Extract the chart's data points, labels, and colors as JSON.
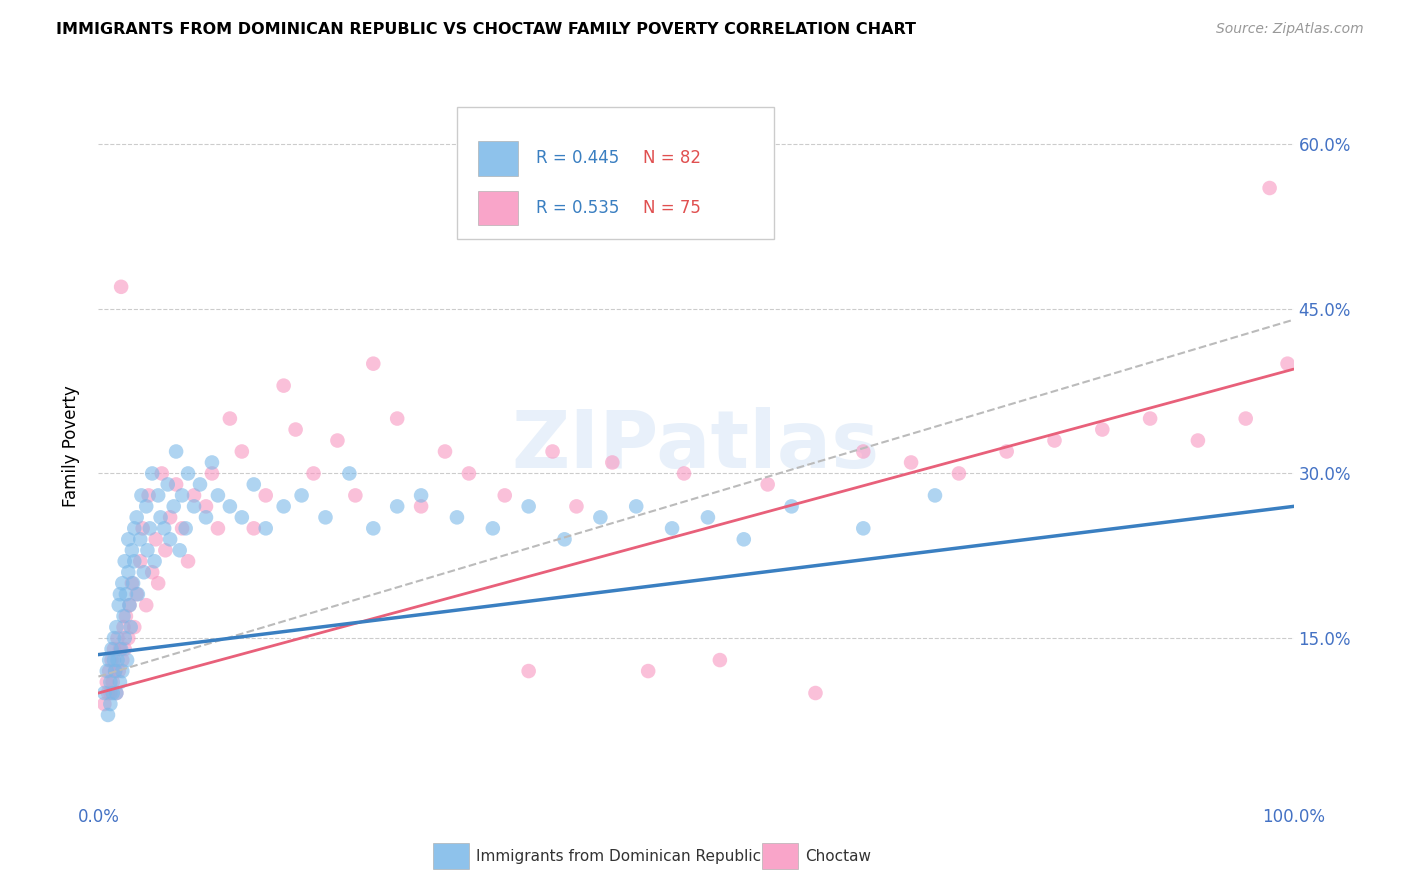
{
  "title": "IMMIGRANTS FROM DOMINICAN REPUBLIC VS CHOCTAW FAMILY POVERTY CORRELATION CHART",
  "source": "Source: ZipAtlas.com",
  "ylabel": "Family Poverty",
  "xlim": [
    0.0,
    1.0
  ],
  "ylim": [
    0.0,
    0.65
  ],
  "ytick_positions": [
    0.15,
    0.3,
    0.45,
    0.6
  ],
  "ytick_labels": [
    "15.0%",
    "30.0%",
    "45.0%",
    "60.0%"
  ],
  "blue_color": "#7ab8e8",
  "pink_color": "#f896c0",
  "blue_line_color": "#3a7fc1",
  "pink_line_color": "#e8607a",
  "dashed_line_color": "#bbbbbb",
  "legend_R1": "R = 0.445",
  "legend_N1": "N = 82",
  "legend_R2": "R = 0.535",
  "legend_N2": "N = 75",
  "label1": "Immigrants from Dominican Republic",
  "label2": "Choctaw",
  "watermark": "ZIPatlas",
  "blue_scatter_x": [
    0.005,
    0.007,
    0.008,
    0.009,
    0.01,
    0.01,
    0.011,
    0.012,
    0.013,
    0.013,
    0.014,
    0.015,
    0.015,
    0.016,
    0.017,
    0.018,
    0.018,
    0.019,
    0.02,
    0.02,
    0.021,
    0.022,
    0.022,
    0.023,
    0.024,
    0.025,
    0.025,
    0.026,
    0.027,
    0.028,
    0.029,
    0.03,
    0.03,
    0.032,
    0.033,
    0.035,
    0.036,
    0.038,
    0.04,
    0.041,
    0.043,
    0.045,
    0.047,
    0.05,
    0.052,
    0.055,
    0.058,
    0.06,
    0.063,
    0.065,
    0.068,
    0.07,
    0.073,
    0.075,
    0.08,
    0.085,
    0.09,
    0.095,
    0.1,
    0.11,
    0.12,
    0.13,
    0.14,
    0.155,
    0.17,
    0.19,
    0.21,
    0.23,
    0.25,
    0.27,
    0.3,
    0.33,
    0.36,
    0.39,
    0.42,
    0.45,
    0.48,
    0.51,
    0.54,
    0.58,
    0.64,
    0.7
  ],
  "blue_scatter_y": [
    0.1,
    0.12,
    0.08,
    0.13,
    0.11,
    0.09,
    0.14,
    0.1,
    0.13,
    0.15,
    0.12,
    0.1,
    0.16,
    0.13,
    0.18,
    0.11,
    0.19,
    0.14,
    0.12,
    0.2,
    0.17,
    0.15,
    0.22,
    0.19,
    0.13,
    0.21,
    0.24,
    0.18,
    0.16,
    0.23,
    0.2,
    0.25,
    0.22,
    0.26,
    0.19,
    0.24,
    0.28,
    0.21,
    0.27,
    0.23,
    0.25,
    0.3,
    0.22,
    0.28,
    0.26,
    0.25,
    0.29,
    0.24,
    0.27,
    0.32,
    0.23,
    0.28,
    0.25,
    0.3,
    0.27,
    0.29,
    0.26,
    0.31,
    0.28,
    0.27,
    0.26,
    0.29,
    0.25,
    0.27,
    0.28,
    0.26,
    0.3,
    0.25,
    0.27,
    0.28,
    0.26,
    0.25,
    0.27,
    0.24,
    0.26,
    0.27,
    0.25,
    0.26,
    0.24,
    0.27,
    0.25,
    0.28
  ],
  "pink_scatter_x": [
    0.005,
    0.007,
    0.008,
    0.009,
    0.01,
    0.011,
    0.012,
    0.013,
    0.014,
    0.015,
    0.016,
    0.017,
    0.018,
    0.019,
    0.02,
    0.021,
    0.022,
    0.023,
    0.025,
    0.026,
    0.028,
    0.03,
    0.032,
    0.035,
    0.037,
    0.04,
    0.042,
    0.045,
    0.048,
    0.05,
    0.053,
    0.056,
    0.06,
    0.065,
    0.07,
    0.075,
    0.08,
    0.09,
    0.095,
    0.1,
    0.11,
    0.12,
    0.13,
    0.14,
    0.155,
    0.165,
    0.18,
    0.2,
    0.215,
    0.23,
    0.25,
    0.27,
    0.29,
    0.31,
    0.34,
    0.36,
    0.38,
    0.4,
    0.43,
    0.46,
    0.49,
    0.52,
    0.56,
    0.6,
    0.64,
    0.68,
    0.72,
    0.76,
    0.8,
    0.84,
    0.88,
    0.92,
    0.96,
    0.98,
    0.995
  ],
  "pink_scatter_y": [
    0.09,
    0.11,
    0.1,
    0.12,
    0.1,
    0.13,
    0.11,
    0.14,
    0.12,
    0.1,
    0.15,
    0.12,
    0.14,
    0.47,
    0.13,
    0.16,
    0.14,
    0.17,
    0.15,
    0.18,
    0.2,
    0.16,
    0.19,
    0.22,
    0.25,
    0.18,
    0.28,
    0.21,
    0.24,
    0.2,
    0.3,
    0.23,
    0.26,
    0.29,
    0.25,
    0.22,
    0.28,
    0.27,
    0.3,
    0.25,
    0.35,
    0.32,
    0.25,
    0.28,
    0.38,
    0.34,
    0.3,
    0.33,
    0.28,
    0.4,
    0.35,
    0.27,
    0.32,
    0.3,
    0.28,
    0.12,
    0.32,
    0.27,
    0.31,
    0.12,
    0.3,
    0.13,
    0.29,
    0.1,
    0.32,
    0.31,
    0.3,
    0.32,
    0.33,
    0.34,
    0.35,
    0.33,
    0.35,
    0.56,
    0.4
  ],
  "blue_line_x": [
    0.0,
    1.0
  ],
  "blue_line_y": [
    0.135,
    0.27
  ],
  "pink_line_x": [
    0.0,
    1.0
  ],
  "pink_line_y": [
    0.1,
    0.395
  ],
  "dashed_line_x": [
    0.0,
    1.0
  ],
  "dashed_line_y": [
    0.115,
    0.44
  ]
}
